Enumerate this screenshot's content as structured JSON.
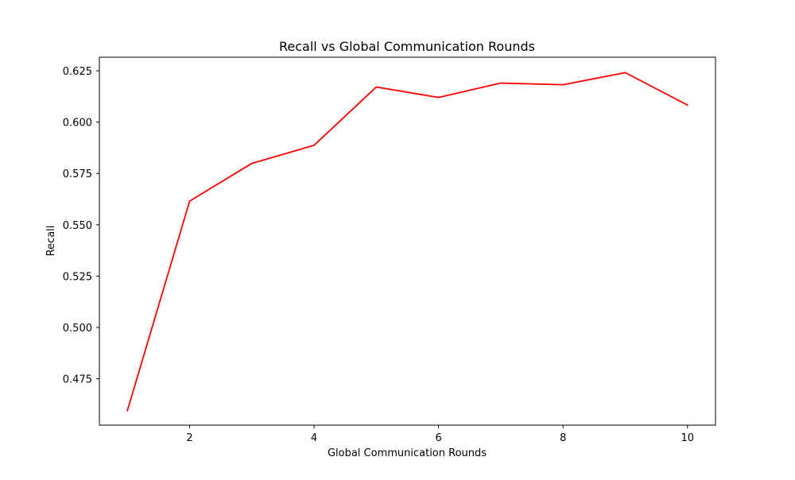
{
  "chart_data": {
    "type": "line",
    "title": "Recall vs Global Communication Rounds",
    "xlabel": "Global Communication Rounds",
    "ylabel": "Recall",
    "xlim": [
      0.55,
      10.45
    ],
    "ylim": [
      0.4524,
      0.6316
    ],
    "x_ticks": [
      2,
      4,
      6,
      8,
      10
    ],
    "y_ticks": [
      0.475,
      0.5,
      0.525,
      0.55,
      0.575,
      0.6,
      0.625
    ],
    "grid": false,
    "legend": "none",
    "series": [
      {
        "color": "#ff0000",
        "x": [
          1,
          2,
          3,
          4,
          5,
          6,
          7,
          8,
          9,
          10
        ],
        "y": [
          0.4595,
          0.5615,
          0.5799,
          0.5887,
          0.6171,
          0.612,
          0.619,
          0.6182,
          0.6241,
          0.6083
        ]
      }
    ]
  }
}
